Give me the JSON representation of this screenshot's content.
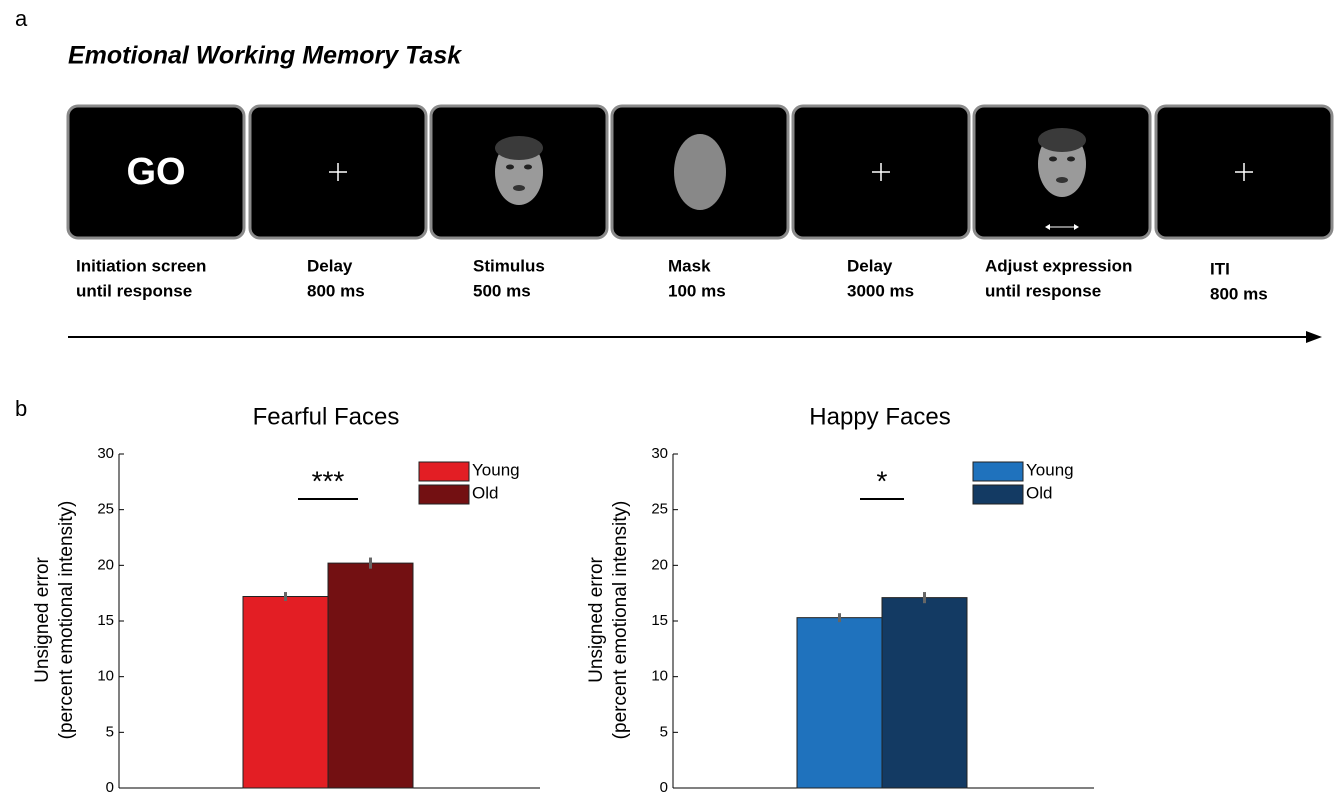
{
  "panel_labels": [
    "a",
    "b"
  ],
  "task": {
    "title": "Emotional Working Memory Task",
    "screens": [
      {
        "text": "GO",
        "caption": [
          "Initiation screen",
          "until response"
        ]
      },
      {
        "caption": [
          "Delay",
          "800 ms"
        ]
      },
      {
        "caption": [
          "Stimulus",
          "500 ms"
        ]
      },
      {
        "caption": [
          "Mask",
          "100 ms"
        ]
      },
      {
        "caption": [
          "Delay",
          "3000 ms"
        ]
      },
      {
        "caption": [
          "Adjust expression",
          "until response"
        ]
      },
      {
        "caption": [
          "ITI",
          "800 ms"
        ]
      }
    ]
  },
  "chart_data": [
    {
      "type": "bar",
      "title": "Fearful Faces",
      "ylabel": [
        "Unsigned error",
        "(percent emotional intensity)"
      ],
      "categories": [
        null
      ],
      "ylim": [
        0,
        30
      ],
      "yticks": [
        0,
        5,
        10,
        15,
        20,
        25,
        30
      ],
      "series": [
        {
          "name": "Young",
          "color": "#e31e24",
          "values": [
            17.2
          ],
          "errors": [
            0.4
          ]
        },
        {
          "name": "Old",
          "color": "#731012",
          "values": [
            20.2
          ],
          "errors": [
            0.5
          ]
        }
      ],
      "annotation": "***",
      "legend": "upper right"
    },
    {
      "type": "bar",
      "title": "Happy Faces",
      "ylabel": [
        "Unsigned error",
        "(percent emotional intensity)"
      ],
      "categories": [
        null
      ],
      "ylim": [
        0,
        30
      ],
      "yticks": [
        0,
        5,
        10,
        15,
        20,
        25,
        30
      ],
      "series": [
        {
          "name": "Young",
          "color": "#1f72bd",
          "values": [
            15.3
          ],
          "errors": [
            0.4
          ]
        },
        {
          "name": "Old",
          "color": "#133a63",
          "values": [
            17.1
          ],
          "errors": [
            0.5
          ]
        }
      ],
      "annotation": "*",
      "legend": "upper right"
    }
  ]
}
